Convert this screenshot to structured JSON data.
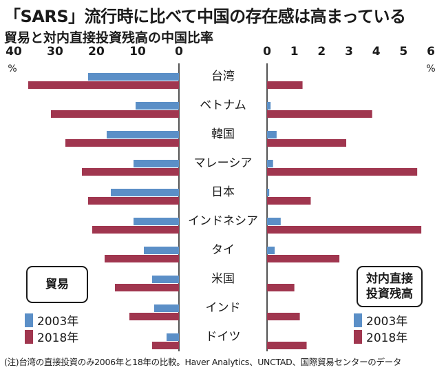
{
  "title": "「SARS」流行時に比べて中国の存在感は高まっている",
  "subtitle": "貿易と対内直接投資残高の中国比率",
  "note": "(注)台湾の直接投資のみ2006年と18年の比較。Haver Analytics、UNCTAD、国際貿易センターのデータ",
  "colors": {
    "y2003": "#5b8fc7",
    "y2018": "#a0364f"
  },
  "chart_data": [
    {
      "type": "bar",
      "orientation": "horizontal",
      "direction": "leftward",
      "panel_label": "貿易",
      "unit": "%",
      "xlim": [
        0,
        40
      ],
      "ticks": [
        40,
        30,
        20,
        10,
        0
      ],
      "categories": [
        "台湾",
        "ベトナム",
        "韓国",
        "マレーシア",
        "日本",
        "インドネシア",
        "タイ",
        "米国",
        "インド",
        "ドイツ"
      ],
      "series": [
        {
          "name": "2003年",
          "values": [
            22,
            10.5,
            17.5,
            11,
            16.5,
            11,
            8.5,
            6.5,
            6,
            3
          ]
        },
        {
          "name": "2018年",
          "values": [
            36.5,
            31,
            27.5,
            23.5,
            22,
            21,
            18,
            15.5,
            12,
            6.5
          ]
        }
      ]
    },
    {
      "type": "bar",
      "orientation": "horizontal",
      "direction": "rightward",
      "panel_label": "対内直接投資残高",
      "unit": "%",
      "xlim": [
        0,
        6
      ],
      "ticks": [
        0,
        1,
        2,
        3,
        4,
        5,
        6
      ],
      "categories": [
        "台湾",
        "ベトナム",
        "韓国",
        "マレーシア",
        "日本",
        "インドネシア",
        "タイ",
        "米国",
        "インド",
        "ドイツ"
      ],
      "series": [
        {
          "name": "2003年",
          "values": [
            0,
            0.13,
            0.35,
            0.22,
            0.08,
            0.5,
            0.28,
            0,
            0,
            0
          ]
        },
        {
          "name": "2018年",
          "values": [
            1.3,
            3.85,
            2.9,
            5.5,
            1.6,
            5.65,
            2.65,
            1.0,
            1.2,
            1.45
          ]
        }
      ]
    }
  ],
  "legend_left": {
    "label": "貿易"
  },
  "legend_right": {
    "label_line1": "対内直接",
    "label_line2": "投資残高"
  },
  "legend_items": [
    "2003年",
    "2018年"
  ]
}
